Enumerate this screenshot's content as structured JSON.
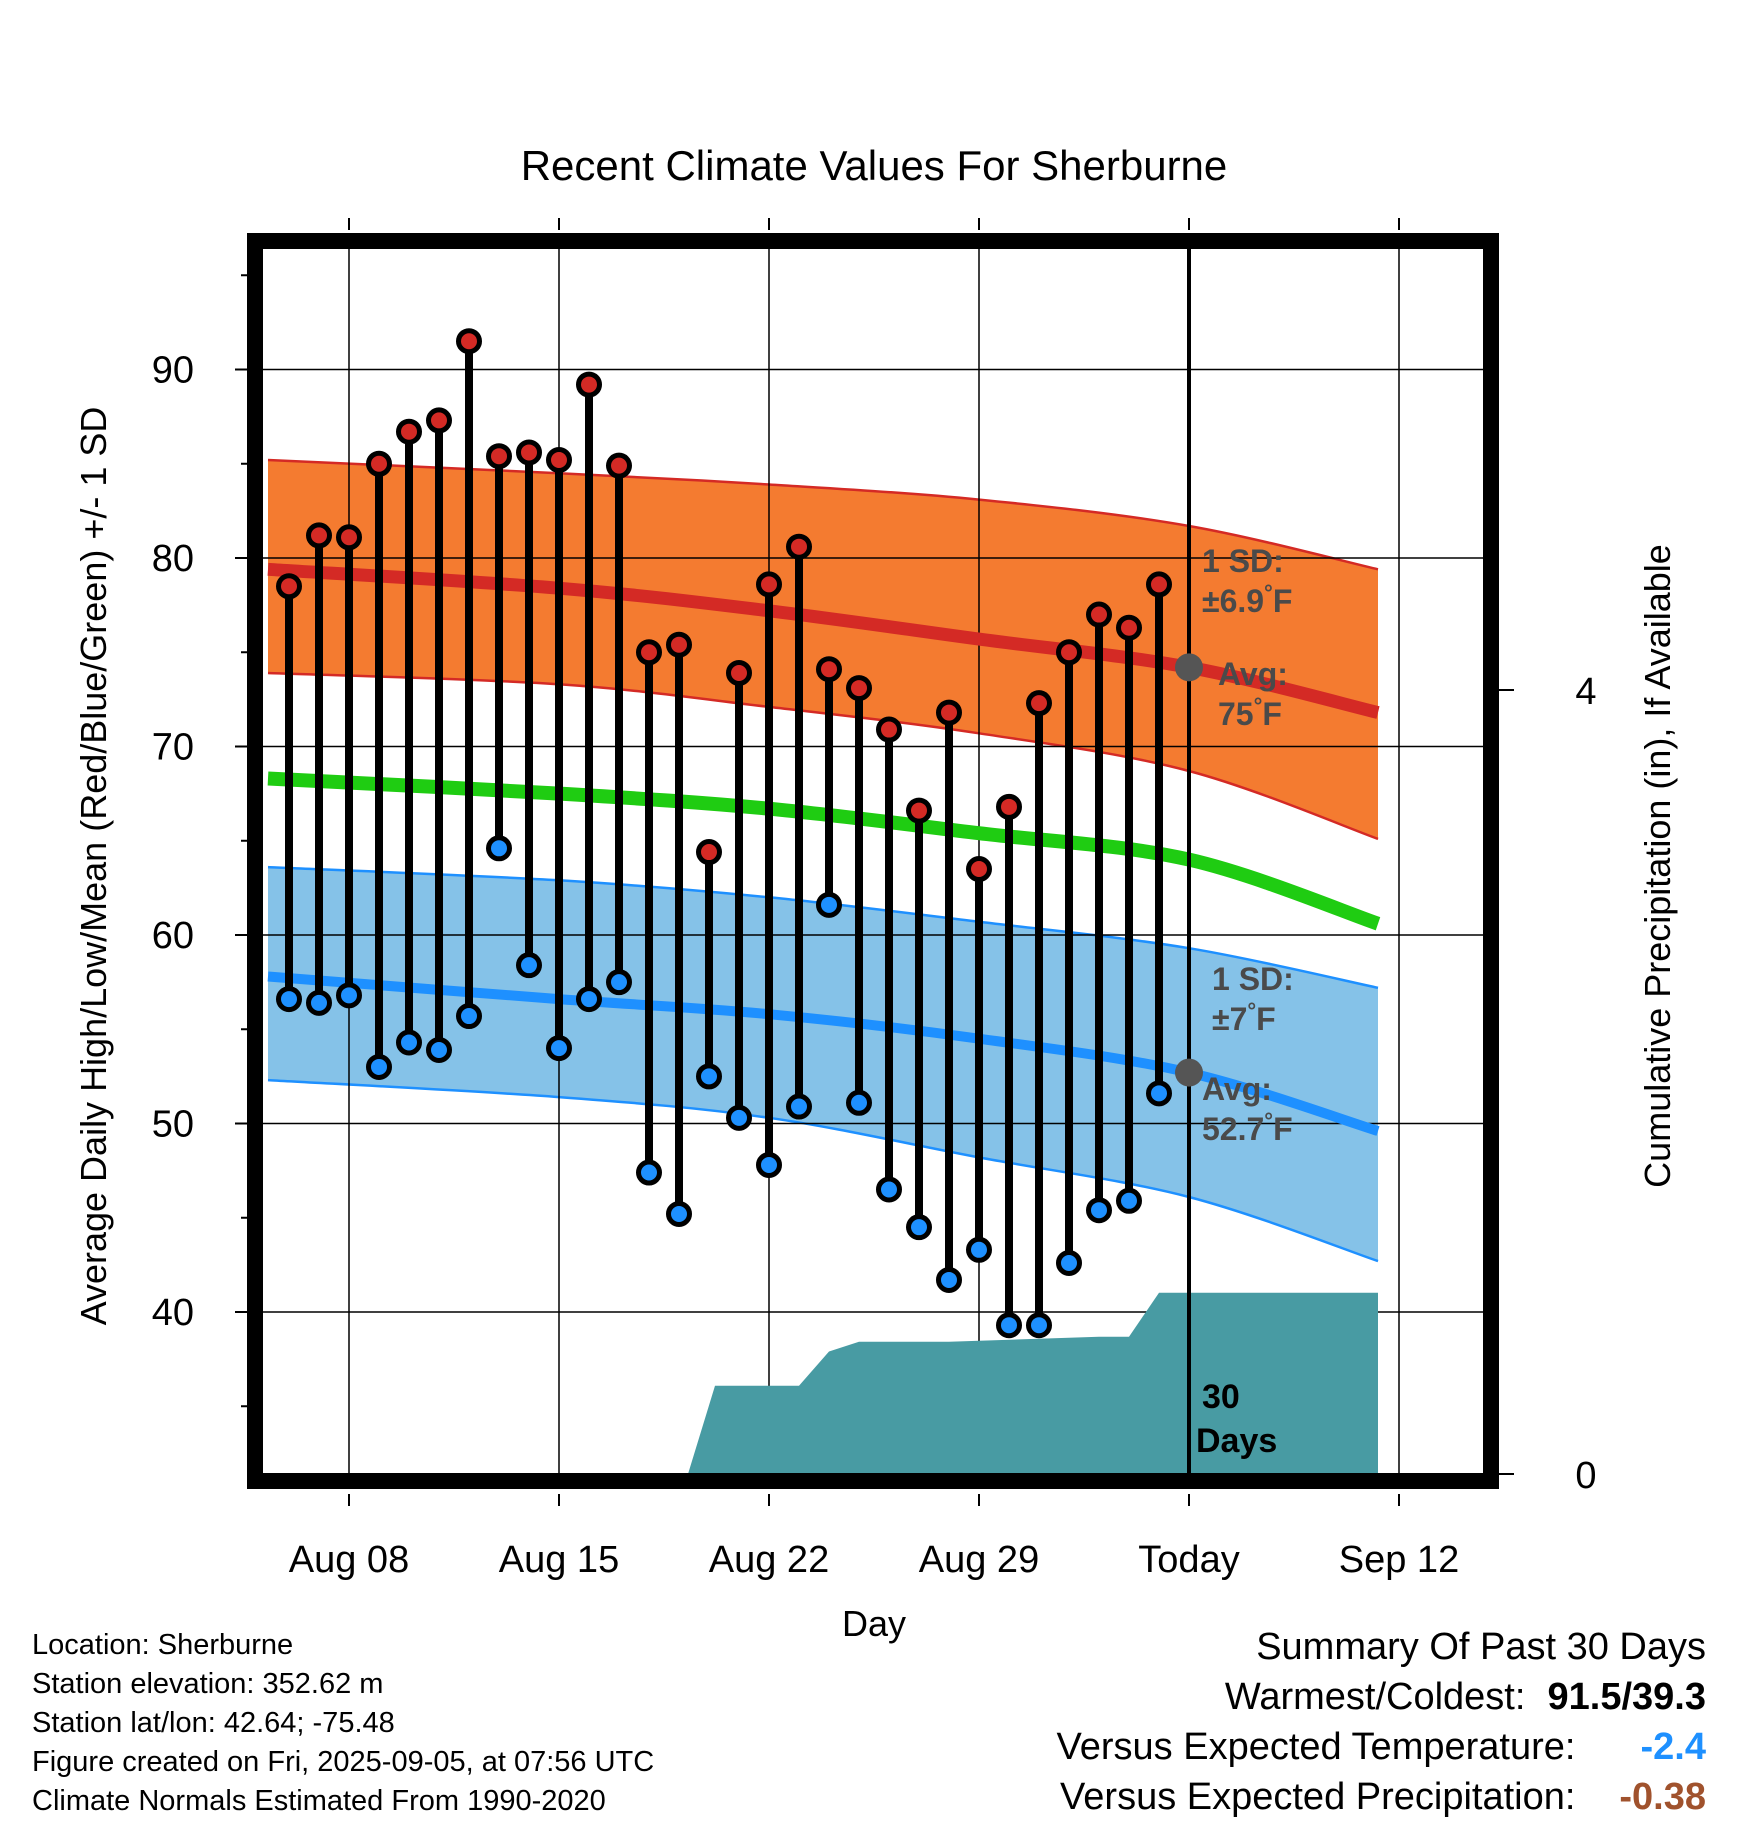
{
  "chart_data": {
    "type": "line",
    "title": "Recent Climate Values For Sherburne",
    "xlabel": "Day",
    "ylabel": "Average Daily High/Low/Mean (Red/Blue/Green) +/- 1 SD",
    "y2label": "Cumulative Precipitation (in), If Available",
    "ylim": [
      31.5,
      97
    ],
    "y2lim": [
      0,
      20
    ],
    "x_tick_labels": [
      "Aug 08",
      "Aug 15",
      "Aug 22",
      "Aug 29",
      "Today",
      "Sep 12"
    ],
    "x_tick_days": [
      0,
      7,
      14,
      21,
      28,
      35
    ],
    "y_ticks": [
      40,
      50,
      60,
      70,
      80,
      90
    ],
    "y2_ticks": [
      0,
      4,
      8,
      12
    ],
    "grid": true,
    "daily_days": [
      -2,
      -1,
      0,
      1,
      2,
      3,
      4,
      5,
      6,
      7,
      8,
      9,
      10,
      11,
      12,
      13,
      14,
      15,
      16,
      17,
      18,
      19,
      20,
      21,
      22,
      23,
      24,
      25,
      26,
      27
    ],
    "daily_high": [
      78.5,
      81.2,
      81.1,
      85.0,
      86.7,
      87.3,
      91.5,
      85.4,
      85.6,
      85.2,
      89.2,
      84.9,
      75.0,
      75.4,
      64.4,
      73.9,
      78.6,
      80.6,
      74.1,
      73.1,
      70.9,
      66.6,
      71.8,
      63.5,
      66.8,
      72.3,
      75.0,
      77.0,
      76.3,
      78.6
    ],
    "daily_low": [
      56.6,
      56.4,
      56.8,
      53.0,
      54.3,
      53.9,
      55.7,
      64.6,
      58.4,
      54.0,
      56.6,
      57.5,
      47.4,
      45.2,
      52.5,
      50.3,
      47.8,
      50.9,
      61.6,
      51.1,
      46.5,
      44.5,
      41.7,
      43.3,
      39.3,
      39.3,
      42.6,
      45.4,
      45.9,
      51.6
    ],
    "normal_days": [
      -2.7,
      7,
      14,
      21,
      28,
      34.3
    ],
    "normal_high": [
      79.4,
      78.4,
      77.2,
      75.7,
      74.2,
      71.8
    ],
    "normal_high_sd_upper": [
      85.2,
      84.5,
      83.9,
      83.1,
      81.7,
      79.4
    ],
    "normal_high_sd_lower": [
      73.9,
      73.3,
      72.1,
      70.7,
      68.7,
      65.1
    ],
    "normal_mean": [
      68.3,
      67.5,
      66.7,
      65.4,
      64.0,
      60.6
    ],
    "normal_low": [
      57.8,
      56.6,
      55.8,
      54.5,
      52.7,
      49.6
    ],
    "normal_low_sd_upper": [
      63.6,
      62.9,
      62.0,
      60.7,
      59.3,
      57.2
    ],
    "normal_low_sd_lower": [
      52.3,
      51.4,
      50.3,
      48.2,
      46.1,
      42.7
    ],
    "precip_days": [
      11.3,
      12.2,
      15.0,
      16.0,
      17.0,
      20.0,
      25.0,
      26.0,
      27.0,
      34.3
    ],
    "precip_cum": [
      0,
      1.8,
      1.8,
      2.5,
      2.7,
      2.7,
      2.8,
      2.8,
      3.7,
      3.7
    ],
    "high_sd_label": [
      "1 SD:",
      "±6.9",
      "°F"
    ],
    "high_avg_label": [
      "Avg:",
      "75",
      "°F"
    ],
    "low_sd_label": [
      "1 SD:",
      "±7",
      "°F"
    ],
    "low_avg_label": [
      "Avg:",
      "52.7",
      "°F"
    ],
    "days_label": [
      "30",
      "Days"
    ],
    "colors": {
      "high_band": "#f47b30",
      "high_line": "#d42a25",
      "low_band": "#85c2e8",
      "low_line": "#1e90ff",
      "mean_line": "#1fcc12",
      "precip": "#489ba3",
      "high_dot": "#d42a25",
      "low_dot": "#1e90ff",
      "marker": "#555555"
    }
  },
  "station": {
    "location": "Location: Sherburne",
    "elevation": "Station elevation: 352.62 m",
    "latlon": "Station lat/lon: 42.64; -75.48",
    "created": "Figure created on Fri, 2025-09-05, at 07:56 UTC",
    "normals": "Climate Normals Estimated From 1990-2020"
  },
  "summary": {
    "title": "Summary Of Past 30 Days",
    "warm_cold_label": "Warmest/Coldest:",
    "warm_cold_value": "91.5/39.3",
    "temp_label": "Versus Expected Temperature:",
    "temp_value": "-2.4",
    "temp_color": "#1e90ff",
    "precip_label": "Versus Expected Precipitation:",
    "precip_value": "-0.38",
    "precip_color": "#a0522d"
  }
}
